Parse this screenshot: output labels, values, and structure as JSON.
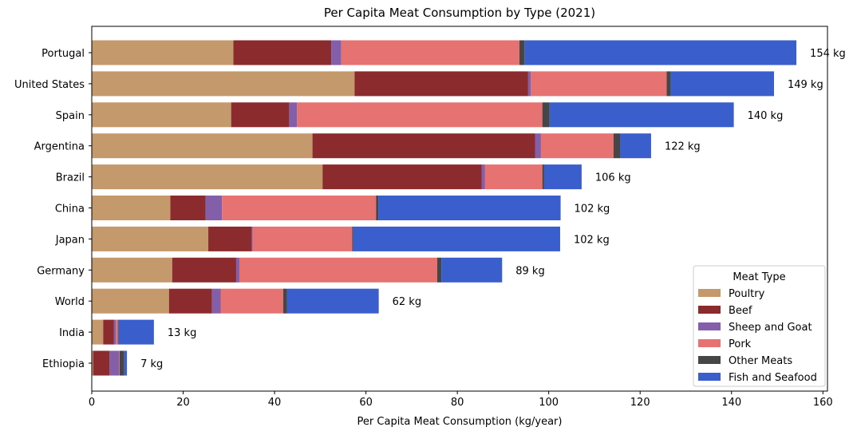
{
  "chart_data": {
    "type": "bar",
    "orientation": "horizontal",
    "stacked": true,
    "title": "Per Capita Meat Consumption by Type (2021)",
    "xlabel": "Per Capita Meat Consumption (kg/year)",
    "ylabel": "",
    "xlim": [
      0,
      161
    ],
    "xticks": [
      "0",
      "20",
      "40",
      "60",
      "80",
      "100",
      "120",
      "140",
      "160"
    ],
    "grid": false,
    "legend": {
      "title": "Meat Type",
      "placement": "lower-right"
    },
    "categories": [
      "Portugal",
      "United States",
      "Spain",
      "Argentina",
      "Brazil",
      "China",
      "Japan",
      "Germany",
      "World",
      "India",
      "Ethiopia"
    ],
    "totals": [
      "154 kg",
      "149 kg",
      "140 kg",
      "122 kg",
      "106 kg",
      "102 kg",
      "102 kg",
      "89 kg",
      "62 kg",
      "13 kg",
      "7 kg"
    ],
    "series": [
      {
        "name": "Poultry",
        "color": "#c4996c",
        "values": [
          31,
          57.5,
          30.5,
          48.3,
          50.5,
          17.2,
          25.5,
          17.6,
          16.9,
          2.5,
          0.3
        ]
      },
      {
        "name": "Beef",
        "color": "#8b2b2e",
        "values": [
          21.4,
          38.0,
          12.7,
          48.7,
          34.8,
          7.7,
          9.5,
          14.0,
          9.4,
          2.3,
          3.6
        ]
      },
      {
        "name": "Sheep and Goat",
        "color": "#825fa8",
        "values": [
          2.2,
          0.6,
          1.7,
          1.3,
          0.7,
          3.6,
          0.2,
          0.7,
          1.9,
          0.5,
          2.1
        ]
      },
      {
        "name": "Pork",
        "color": "#e67272",
        "values": [
          39,
          29.7,
          53.7,
          15.9,
          12.6,
          33.7,
          21.8,
          43.3,
          13.7,
          0.4,
          0.1
        ]
      },
      {
        "name": "Other Meats",
        "color": "#464646",
        "values": [
          1.1,
          0.9,
          1.6,
          1.4,
          0.4,
          0.5,
          0.2,
          0.9,
          0.8,
          0.2,
          1.0
        ]
      },
      {
        "name": "Fish and Seafood",
        "color": "#3a5fcd",
        "values": [
          59.5,
          22.6,
          40.3,
          6.8,
          8.2,
          39.9,
          45.3,
          13.3,
          20.1,
          7.7,
          0.6
        ]
      }
    ]
  }
}
